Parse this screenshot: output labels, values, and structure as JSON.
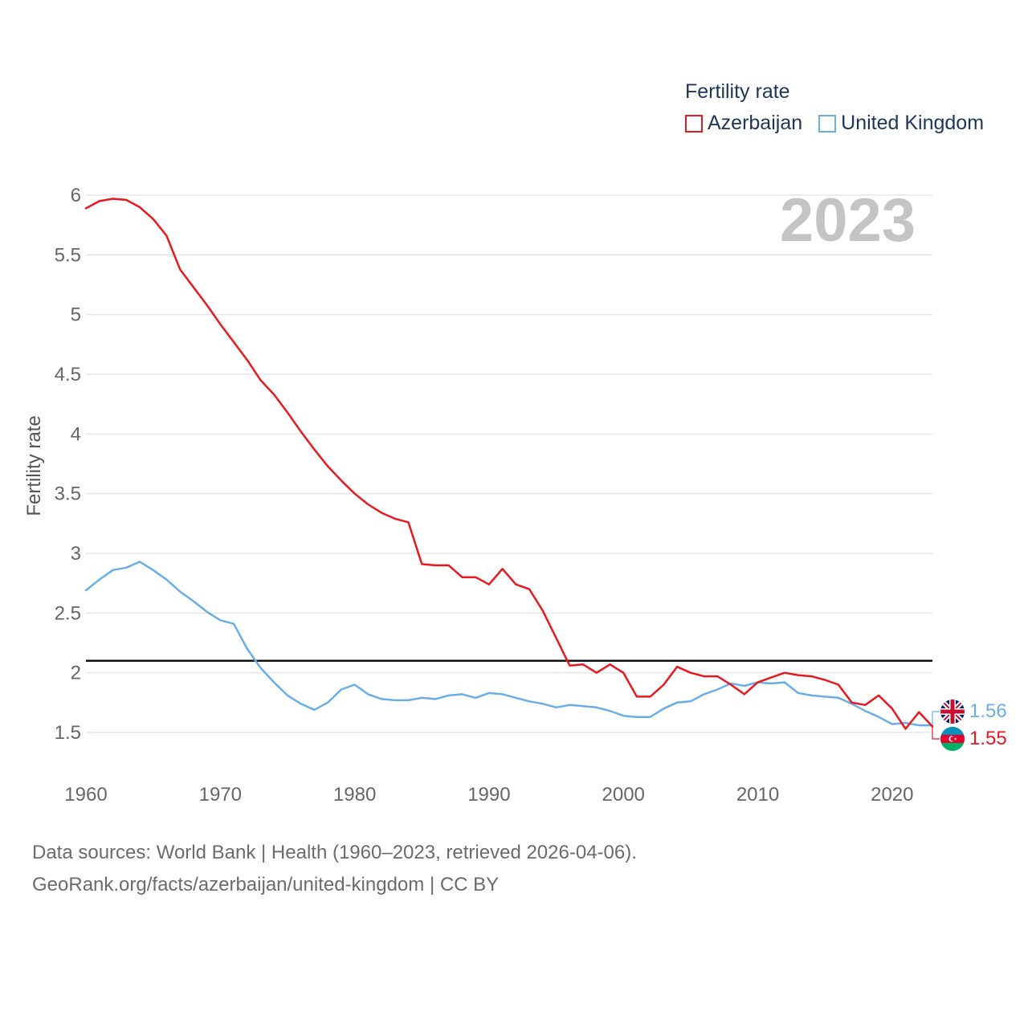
{
  "legend": {
    "title": "Fertility rate",
    "items": [
      {
        "label": "Azerbaijan",
        "color": "#e8191e"
      },
      {
        "label": "United Kingdom",
        "color": "#6aaee8"
      }
    ]
  },
  "footer": {
    "line1": "Data sources: World Bank | Health (1960–2023, retrieved 2026-04-06).",
    "line2": "GeoRank.org/facts/azerbaijan/united-kingdom | CC BY"
  },
  "chart_data": {
    "type": "line",
    "title": "Fertility rate",
    "current_year_label": "2023",
    "xlabel": "",
    "ylabel": "Fertility rate",
    "xlim": [
      1960,
      2023
    ],
    "ylim": [
      1.5,
      6
    ],
    "y_ticks": [
      1.5,
      2,
      2.5,
      3,
      3.5,
      4,
      4.5,
      5,
      5.5,
      6
    ],
    "y_tick_labels": [
      "1.5",
      "2",
      "2.5",
      "3",
      "3.5",
      "4",
      "4.5",
      "5",
      "5.5",
      "6"
    ],
    "x_ticks": [
      1960,
      1970,
      1980,
      1990,
      2000,
      2010,
      2020
    ],
    "x_tick_labels": [
      "1960",
      "1970",
      "1980",
      "1990",
      "2000",
      "2010",
      "2020"
    ],
    "reference_line": 2.1,
    "grid": true,
    "x": [
      1960,
      1961,
      1962,
      1963,
      1964,
      1965,
      1966,
      1967,
      1968,
      1969,
      1970,
      1971,
      1972,
      1973,
      1974,
      1975,
      1976,
      1977,
      1978,
      1979,
      1980,
      1981,
      1982,
      1983,
      1984,
      1985,
      1986,
      1987,
      1988,
      1989,
      1990,
      1991,
      1992,
      1993,
      1994,
      1995,
      1996,
      1997,
      1998,
      1999,
      2000,
      2001,
      2002,
      2003,
      2004,
      2005,
      2006,
      2007,
      2008,
      2009,
      2010,
      2011,
      2012,
      2013,
      2014,
      2015,
      2016,
      2017,
      2018,
      2019,
      2020,
      2021,
      2022,
      2023
    ],
    "series": [
      {
        "name": "Azerbaijan",
        "color": "#e8191e",
        "end_label": "1.55",
        "values": [
          5.89,
          5.95,
          5.97,
          5.96,
          5.9,
          5.8,
          5.66,
          5.38,
          5.23,
          5.08,
          4.92,
          4.77,
          4.62,
          4.45,
          4.33,
          4.18,
          4.02,
          3.87,
          3.73,
          3.61,
          3.5,
          3.41,
          3.34,
          3.29,
          3.26,
          2.91,
          2.9,
          2.9,
          2.8,
          2.8,
          2.74,
          2.87,
          2.74,
          2.7,
          2.52,
          2.29,
          2.06,
          2.07,
          2.0,
          2.07,
          2.0,
          1.8,
          1.8,
          1.9,
          2.05,
          2.0,
          1.97,
          1.97,
          1.9,
          1.82,
          1.92,
          1.96,
          2.0,
          1.98,
          1.97,
          1.94,
          1.9,
          1.75,
          1.73,
          1.81,
          1.7,
          1.53,
          1.67,
          1.55
        ]
      },
      {
        "name": "United Kingdom",
        "color": "#6aaee8",
        "end_label": "1.56",
        "values": [
          2.69,
          2.78,
          2.86,
          2.88,
          2.93,
          2.86,
          2.78,
          2.68,
          2.6,
          2.51,
          2.44,
          2.41,
          2.2,
          2.04,
          1.92,
          1.81,
          1.74,
          1.69,
          1.75,
          1.86,
          1.9,
          1.82,
          1.78,
          1.77,
          1.77,
          1.79,
          1.78,
          1.81,
          1.82,
          1.79,
          1.83,
          1.82,
          1.79,
          1.76,
          1.74,
          1.71,
          1.73,
          1.72,
          1.71,
          1.68,
          1.64,
          1.63,
          1.63,
          1.7,
          1.75,
          1.76,
          1.82,
          1.86,
          1.91,
          1.89,
          1.92,
          1.91,
          1.92,
          1.83,
          1.81,
          1.8,
          1.79,
          1.74,
          1.68,
          1.63,
          1.57,
          1.58,
          1.56,
          1.56
        ]
      }
    ]
  }
}
